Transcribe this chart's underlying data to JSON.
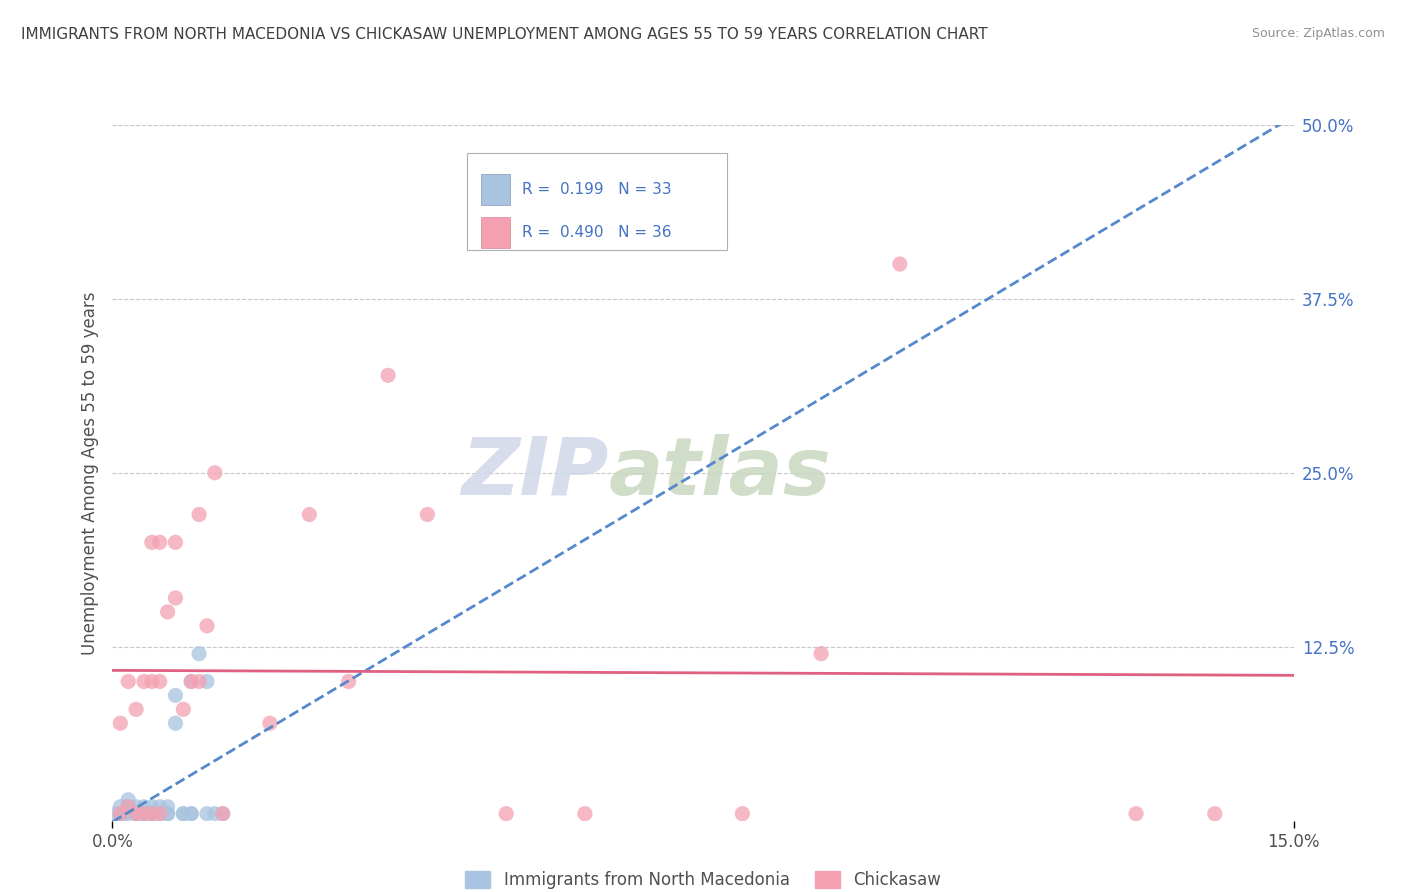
{
  "title": "IMMIGRANTS FROM NORTH MACEDONIA VS CHICKASAW UNEMPLOYMENT AMONG AGES 55 TO 59 YEARS CORRELATION CHART",
  "source": "Source: ZipAtlas.com",
  "ylabel": "Unemployment Among Ages 55 to 59 years",
  "xlim": [
    0.0,
    0.15
  ],
  "ylim": [
    0.0,
    0.5
  ],
  "ytick_vals": [
    0.5,
    0.375,
    0.25,
    0.125
  ],
  "blue_R": 0.199,
  "blue_N": 33,
  "pink_R": 0.49,
  "pink_N": 36,
  "blue_color": "#a8c4e0",
  "pink_color": "#f4a0b0",
  "blue_line_color": "#5588cc",
  "pink_line_color": "#e06080",
  "legend_label_blue": "Immigrants from North Macedonia",
  "legend_label_pink": "Chickasaw",
  "blue_scatter_x": [
    0.0005,
    0.001,
    0.001,
    0.0015,
    0.002,
    0.002,
    0.002,
    0.003,
    0.003,
    0.003,
    0.004,
    0.004,
    0.004,
    0.005,
    0.005,
    0.005,
    0.006,
    0.006,
    0.007,
    0.007,
    0.007,
    0.008,
    0.008,
    0.009,
    0.009,
    0.01,
    0.01,
    0.01,
    0.011,
    0.012,
    0.012,
    0.013,
    0.014
  ],
  "blue_scatter_y": [
    0.005,
    0.005,
    0.01,
    0.005,
    0.005,
    0.01,
    0.015,
    0.005,
    0.01,
    0.005,
    0.005,
    0.01,
    0.005,
    0.005,
    0.01,
    0.005,
    0.01,
    0.005,
    0.005,
    0.01,
    0.005,
    0.07,
    0.09,
    0.005,
    0.005,
    0.005,
    0.1,
    0.005,
    0.12,
    0.005,
    0.1,
    0.005,
    0.005
  ],
  "pink_scatter_x": [
    0.001,
    0.001,
    0.002,
    0.002,
    0.003,
    0.003,
    0.004,
    0.004,
    0.005,
    0.005,
    0.005,
    0.006,
    0.006,
    0.006,
    0.007,
    0.008,
    0.008,
    0.009,
    0.01,
    0.011,
    0.011,
    0.012,
    0.013,
    0.014,
    0.02,
    0.025,
    0.03,
    0.035,
    0.04,
    0.05,
    0.06,
    0.08,
    0.09,
    0.1,
    0.13,
    0.14
  ],
  "pink_scatter_y": [
    0.005,
    0.07,
    0.01,
    0.1,
    0.005,
    0.08,
    0.005,
    0.1,
    0.1,
    0.005,
    0.2,
    0.005,
    0.1,
    0.2,
    0.15,
    0.16,
    0.2,
    0.08,
    0.1,
    0.1,
    0.22,
    0.14,
    0.25,
    0.005,
    0.07,
    0.22,
    0.1,
    0.32,
    0.22,
    0.005,
    0.005,
    0.005,
    0.12,
    0.4,
    0.005,
    0.005
  ],
  "watermark_zip": "ZIP",
  "watermark_atlas": "atlas",
  "background_color": "#ffffff",
  "grid_color": "#c8c8c8",
  "title_color": "#404040",
  "axis_color": "#505050",
  "tick_color": "#4472c4"
}
